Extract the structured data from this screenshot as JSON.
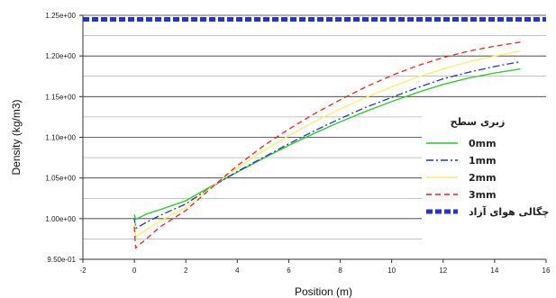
{
  "chart_data": {
    "type": "line",
    "title": "",
    "xlabel": "Position (m)",
    "ylabel": "Density (kg/m3)",
    "xlim": [
      -2,
      16
    ],
    "ylim": [
      0.95,
      1.25
    ],
    "x_ticks": [
      -2,
      0,
      2,
      4,
      6,
      8,
      10,
      12,
      14,
      16
    ],
    "x_tick_labels": [
      "-2",
      "0",
      "2",
      "4",
      "6",
      "8",
      "10",
      "12",
      "14",
      "16"
    ],
    "y_ticks": [
      0.95,
      1.0,
      1.05,
      1.1,
      1.15,
      1.2,
      1.25
    ],
    "y_tick_labels": [
      "9.50e-01",
      "1.00e+00",
      "1.05e+00",
      "1.10e+00",
      "1.15e+00",
      "1.20e+00",
      "1.25e+00"
    ],
    "grid": true,
    "legend_title": "زبری سطح",
    "legend_position": "right",
    "series": [
      {
        "name": "0mm",
        "color": "#22cc22",
        "dash": "solid",
        "x": [
          0,
          0.05,
          0.5,
          1,
          2,
          3,
          4,
          5,
          6,
          7,
          8,
          9,
          10,
          11,
          12,
          13,
          14,
          15
        ],
        "y": [
          1.005,
          0.999,
          1.006,
          1.011,
          1.022,
          1.04,
          1.057,
          1.074,
          1.09,
          1.105,
          1.119,
          1.132,
          1.144,
          1.155,
          1.165,
          1.173,
          1.179,
          1.184
        ]
      },
      {
        "name": "1mm",
        "color": "#2233cc",
        "dash": "dashdot",
        "x": [
          0,
          0.05,
          0.5,
          1,
          2,
          3,
          4,
          5,
          6,
          7,
          8,
          9,
          10,
          11,
          12,
          13,
          14,
          15
        ],
        "y": [
          1.0,
          0.988,
          0.996,
          1.004,
          1.018,
          1.039,
          1.058,
          1.075,
          1.092,
          1.108,
          1.123,
          1.137,
          1.149,
          1.161,
          1.172,
          1.18,
          1.187,
          1.193
        ]
      },
      {
        "name": "2mm",
        "color": "#ffee66",
        "dash": "solid",
        "x": [
          0,
          0.05,
          0.5,
          1,
          2,
          3,
          4,
          5,
          6,
          7,
          8,
          9,
          10,
          11,
          12,
          13,
          14,
          15
        ],
        "y": [
          0.995,
          0.978,
          0.987,
          0.997,
          1.014,
          1.039,
          1.062,
          1.083,
          1.102,
          1.119,
          1.135,
          1.149,
          1.162,
          1.174,
          1.184,
          1.193,
          1.2,
          1.206
        ]
      },
      {
        "name": "3mm",
        "color": "#ee2222",
        "dash": "dashed",
        "x": [
          0,
          0.05,
          0.5,
          1,
          2,
          3,
          4,
          5,
          6,
          7,
          8,
          9,
          10,
          11,
          12,
          13,
          14,
          15
        ],
        "y": [
          0.99,
          0.964,
          0.976,
          0.99,
          1.01,
          1.038,
          1.065,
          1.089,
          1.11,
          1.129,
          1.146,
          1.162,
          1.176,
          1.188,
          1.198,
          1.206,
          1.212,
          1.217
        ]
      },
      {
        "name": "چگالی هوای آزاد",
        "color": "#2233dd",
        "dash": "thickdashed",
        "x": [
          -2,
          16
        ],
        "y": [
          1.245,
          1.245
        ]
      }
    ]
  }
}
